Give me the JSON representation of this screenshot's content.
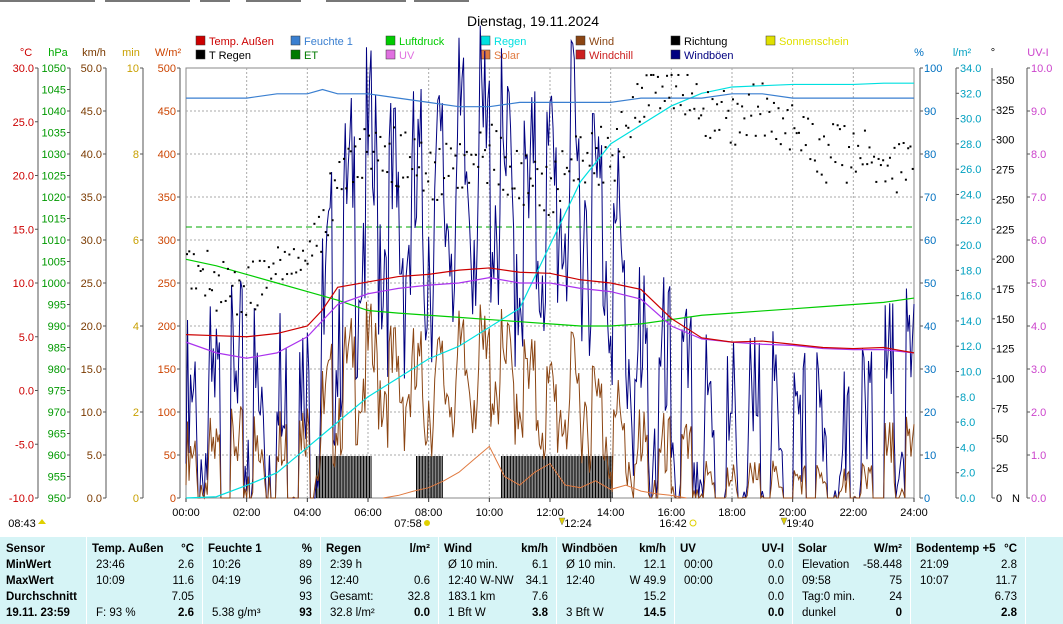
{
  "chart_data": {
    "type": "line",
    "title": "Dienstag, 19.11.2024",
    "xlabel": "",
    "x_ticks": [
      "00:00",
      "02:00",
      "04:00",
      "06:00",
      "08:00",
      "10:00",
      "12:00",
      "14:00",
      "16:00",
      "18:00",
      "20:00",
      "22:00",
      "24:00"
    ],
    "axis_units": {
      "temp": "°C",
      "pressure": "hPa",
      "wind": "km/h",
      "sunshine": "min",
      "solar": "W/m²",
      "humidity": "%",
      "rain": "l/m²",
      "direction": "°",
      "uv": "UV-I"
    },
    "axes": {
      "temp": {
        "min": -10,
        "max": 30,
        "ticks": [
          "30.0",
          "25.0",
          "20.0",
          "15.0",
          "10.0",
          "5.0",
          "0.0",
          "-5.0",
          "-10.0"
        ],
        "color": "#cc0000"
      },
      "pressure": {
        "min": 950,
        "max": 1050,
        "ticks": [
          "1050",
          "1045",
          "1040",
          "1035",
          "1030",
          "1025",
          "1020",
          "1015",
          "1010",
          "1005",
          "1000",
          "995",
          "990",
          "985",
          "980",
          "975",
          "970",
          "965",
          "960",
          "955",
          "950"
        ],
        "color": "#00aa00"
      },
      "wind": {
        "min": 0,
        "max": 50,
        "ticks": [
          "50.0",
          "45.0",
          "40.0",
          "35.0",
          "30.0",
          "25.0",
          "20.0",
          "15.0",
          "10.0",
          "5.0",
          "0.0"
        ],
        "color": "#7a3a00"
      },
      "sunshine": {
        "min": 0,
        "max": 10,
        "ticks": [
          "10",
          "8",
          "6",
          "4",
          "2",
          "0"
        ],
        "color": "#c8a000"
      },
      "solar": {
        "min": 0,
        "max": 500,
        "ticks": [
          "500",
          "450",
          "400",
          "350",
          "300",
          "250",
          "200",
          "150",
          "100",
          "50",
          "0"
        ],
        "color": "#cc4400"
      },
      "humidity": {
        "min": 0,
        "max": 100,
        "ticks": [
          "100",
          "90",
          "80",
          "70",
          "60",
          "50",
          "40",
          "30",
          "20",
          "10",
          "0"
        ],
        "color": "#0070c0"
      },
      "rain": {
        "min": 0,
        "max": 34,
        "ticks": [
          "34.0",
          "32.0",
          "30.0",
          "28.0",
          "26.0",
          "24.0",
          "22.0",
          "20.0",
          "18.0",
          "16.0",
          "14.0",
          "12.0",
          "10.0",
          "8.0",
          "6.0",
          "4.0",
          "2.0",
          "0.0"
        ],
        "color": "#00a0c0"
      },
      "direction": {
        "min": 0,
        "max": 360,
        "ticks": [
          "350",
          "325",
          "300",
          "275",
          "250",
          "225",
          "200",
          "175",
          "150",
          "125",
          "100",
          "75",
          "50",
          "25",
          "0"
        ],
        "zero_label": "N",
        "color": "#000000"
      },
      "uv": {
        "min": 0,
        "max": 10,
        "ticks": [
          "10.0",
          "9.0",
          "8.0",
          "7.0",
          "6.0",
          "5.0",
          "4.0",
          "3.0",
          "2.0",
          "1.0",
          "0.0"
        ],
        "color": "#cc44cc"
      }
    },
    "legend": [
      {
        "name": "Temp. Außen",
        "color": "#cc0000"
      },
      {
        "name": "Feuchte 1",
        "color": "#3a7fd0"
      },
      {
        "name": "Luftdruck",
        "color": "#00cc00"
      },
      {
        "name": "Regen",
        "color": "#00e0e0"
      },
      {
        "name": "Wind",
        "color": "#8b4513"
      },
      {
        "name": "Richtung",
        "color": "#000000"
      },
      {
        "name": "Sonnenschein",
        "color": "#e0e000"
      },
      {
        "name": "T Regen",
        "color": "#000000"
      },
      {
        "name": "ET",
        "color": "#007a00"
      },
      {
        "name": "UV",
        "color": "#e070e0"
      },
      {
        "name": "Solar",
        "color": "#e07a40"
      },
      {
        "name": "Windchill",
        "color": "#cc2020"
      },
      {
        "name": "Windböen",
        "color": "#000080"
      }
    ],
    "series": [
      {
        "name": "Temp. Außen",
        "axis": "temp",
        "x": [
          0,
          1,
          2,
          3,
          4,
          4.5,
          5,
          6,
          7,
          8,
          9,
          10,
          11,
          12,
          13,
          14,
          15,
          16,
          17,
          18,
          19,
          20,
          21,
          22,
          23,
          24
        ],
        "values": [
          5.2,
          5.1,
          5.0,
          5.3,
          6.0,
          7.5,
          9.6,
          10.1,
          10.6,
          10.8,
          11.2,
          11.4,
          11.0,
          10.9,
          10.3,
          10.0,
          9.4,
          6.7,
          4.9,
          4.5,
          4.6,
          4.3,
          4.0,
          3.9,
          4.0,
          3.5
        ]
      },
      {
        "name": "Feuchte 1",
        "axis": "humidity",
        "x": [
          0,
          1,
          2,
          3,
          4,
          4.5,
          5,
          6,
          7,
          8,
          9,
          10,
          11,
          12,
          13,
          14,
          15,
          16,
          17,
          18,
          19,
          20,
          21,
          22,
          23,
          24
        ],
        "values": [
          93,
          93,
          93,
          94,
          94,
          95,
          94,
          94,
          93,
          92,
          91,
          91,
          92,
          92,
          92,
          92,
          93,
          93,
          93,
          94,
          94,
          93,
          93,
          93,
          93,
          93
        ]
      },
      {
        "name": "Luftdruck",
        "axis": "pressure",
        "x": [
          0,
          1,
          2,
          3,
          4,
          5,
          6,
          7,
          8,
          9,
          10,
          11,
          12,
          13,
          14,
          15,
          16,
          17,
          18,
          19,
          20,
          21,
          22,
          23,
          24
        ],
        "values": [
          1005.5,
          1004.0,
          1002.0,
          1000.0,
          998.0,
          996.0,
          993.6,
          993.0,
          992.5,
          992.0,
          991.5,
          991.0,
          990.5,
          990.0,
          990.0,
          990.5,
          991.5,
          992.5,
          993.0,
          993.5,
          994.0,
          994.5,
          995.0,
          995.5,
          996.5
        ]
      },
      {
        "name": "Regen",
        "axis": "rain",
        "x": [
          0,
          1,
          2,
          3,
          4,
          5,
          6,
          7,
          8,
          9,
          10,
          11,
          12,
          13,
          14,
          15,
          16,
          17,
          18,
          19,
          20,
          21,
          22,
          23,
          24
        ],
        "values": [
          0.0,
          0.1,
          1.0,
          2.0,
          4.0,
          6.0,
          8.0,
          9.5,
          11.0,
          12.0,
          13.5,
          15.0,
          20.0,
          25.0,
          28.0,
          29.5,
          31.0,
          32.0,
          32.5,
          32.6,
          32.7,
          32.7,
          32.7,
          32.8,
          32.8
        ]
      },
      {
        "name": "Solar",
        "axis": "solar",
        "x": [
          6.5,
          7,
          7.5,
          8,
          8.5,
          9,
          9.5,
          10,
          10.5,
          11,
          11.5,
          12,
          12.5,
          13,
          13.5,
          14,
          14.5,
          15,
          15.5,
          16,
          16.5
        ],
        "values": [
          0,
          3,
          8,
          12,
          20,
          30,
          45,
          60,
          25,
          15,
          30,
          40,
          15,
          12,
          20,
          10,
          15,
          8,
          5,
          3,
          0
        ]
      },
      {
        "name": "Wind",
        "axis": "wind",
        "x": [
          0,
          1,
          2,
          3,
          4,
          5,
          6,
          7,
          8,
          9,
          10,
          11,
          12,
          13,
          14,
          15,
          16,
          17,
          18,
          19,
          20,
          21,
          22,
          23,
          24
        ],
        "values": [
          1.5,
          2.0,
          3.0,
          3.5,
          4.5,
          12.0,
          15.0,
          13.0,
          12.0,
          14.0,
          15.0,
          13.0,
          10.0,
          12.0,
          8.0,
          3.0,
          2.0,
          1.0,
          0.5,
          0.5,
          0.3,
          0.3,
          0.5,
          1.0,
          3.0
        ]
      },
      {
        "name": "Windböen",
        "axis": "wind",
        "x": [
          0,
          1,
          2,
          3,
          4,
          5,
          6,
          7,
          8,
          9,
          10,
          11,
          12,
          13,
          14,
          15,
          16,
          17,
          18,
          19,
          20,
          21,
          22,
          23,
          24
        ],
        "values": [
          4.0,
          6.0,
          8.0,
          7.0,
          6.0,
          25.0,
          35.0,
          30.0,
          32.0,
          36.0,
          38.0,
          30.0,
          34.0,
          36.0,
          30.0,
          10.0,
          8.0,
          4.0,
          3.0,
          2.0,
          1.5,
          1.0,
          1.5,
          5.0,
          10.0
        ]
      },
      {
        "name": "Windchill",
        "axis": "temp",
        "x": [
          0,
          1,
          2,
          3,
          4,
          5,
          6,
          7,
          8,
          9,
          10,
          11,
          12,
          13,
          14,
          15,
          16,
          17,
          18,
          19,
          20,
          21,
          22,
          23,
          24
        ],
        "values": [
          4.5,
          3.5,
          3.0,
          3.5,
          5.0,
          8.0,
          9.0,
          9.5,
          9.8,
          10.0,
          10.5,
          10.0,
          10.0,
          9.5,
          9.2,
          8.5,
          6.0,
          4.8,
          4.5,
          4.3,
          4.2,
          3.9,
          3.8,
          3.8,
          3.5
        ]
      },
      {
        "name": "Richtung",
        "axis": "direction",
        "type": "scatter",
        "x": [
          0,
          1,
          2,
          3,
          4,
          5,
          6,
          7,
          8,
          9,
          10,
          11,
          12,
          13,
          14,
          15,
          16,
          17,
          18,
          19,
          20,
          21,
          22,
          23,
          24
        ],
        "values": [
          205,
          175,
          170,
          195,
          200,
          270,
          300,
          285,
          270,
          285,
          290,
          270,
          260,
          290,
          285,
          340,
          345,
          325,
          320,
          325,
          310,
          290,
          288,
          282,
          280
        ]
      }
    ],
    "sunshine_marks": {
      "x": [
        4.3,
        4.6,
        6.0,
        8.0
      ],
      "ranges": [
        [
          4.3,
          6.1
        ],
        [
          7.6,
          8.5
        ],
        [
          10.4,
          14.1
        ]
      ]
    },
    "time_markers": {
      "sunrise": "07:58",
      "noon": "12:24",
      "sunset": "16:42",
      "moon": "08:43",
      "moon2": "19:40"
    }
  },
  "stats": {
    "headers": {
      "sensor": "Sensor",
      "temp": "Temp. Außen",
      "temp_unit": "°C",
      "hum": "Feuchte 1",
      "hum_unit": "%",
      "rain": "Regen",
      "rain_unit": "l/m²",
      "wind": "Wind",
      "wind_unit": "km/h",
      "gust": "Windböen",
      "gust_unit": "km/h",
      "uv": "UV",
      "uv_unit": "UV-I",
      "solar": "Solar",
      "solar_unit": "W/m²",
      "soil": "Bodentemp +5",
      "soil_unit": "°C"
    },
    "rows": [
      {
        "label": "MinWert",
        "temp_t": "23:46",
        "temp_v": "2.6",
        "hum_t": "10:26",
        "hum_v": "89",
        "rain_t": "2:39 h",
        "rain_v": "",
        "wind_t": "Ø 10 min.",
        "wind_v": "6.1",
        "gust_t": "Ø 10 min.",
        "gust_v": "12.1",
        "uv_t": "00:00",
        "uv_v": "0.0",
        "solar_t": "Elevation",
        "solar_v": "-58.448",
        "soil_t": "21:09",
        "soil_v": "2.8"
      },
      {
        "label": "MaxWert",
        "temp_t": "10:09",
        "temp_v": "11.6",
        "hum_t": "04:19",
        "hum_v": "96",
        "rain_t": "12:40",
        "rain_v": "0.6",
        "wind_t": "12:40   W-NW",
        "wind_v": "34.1",
        "gust_t": "12:40",
        "gust_v": "W 49.9",
        "uv_t": "00:00",
        "uv_v": "0.0",
        "solar_t": "09:58",
        "solar_v": "75",
        "soil_t": "10:07",
        "soil_v": "11.7"
      },
      {
        "label": "Durchschnitt",
        "temp_t": "",
        "temp_v": "7.05",
        "hum_t": "",
        "hum_v": "93",
        "rain_t": "Gesamt:",
        "rain_v": "32.8",
        "wind_t": "183.1 km",
        "wind_v": "7.6",
        "gust_t": "",
        "gust_v": "15.2",
        "uv_t": "",
        "uv_v": "0.0",
        "solar_t": "Tag:0 min.",
        "solar_v": "24",
        "soil_t": "",
        "soil_v": "6.73"
      },
      {
        "label": "19.11.  23:59",
        "temp_t": "F: 93 %",
        "temp_v": "2.6",
        "hum_t": "5.38 g/m³",
        "hum_v": "93",
        "rain_t": "32.8 l/m²",
        "rain_v": "0.0",
        "wind_t": "1 Bft W",
        "wind_v": "3.8",
        "gust_t": "3 Bft W",
        "gust_v": "14.5",
        "uv_t": "",
        "uv_v": "0.0",
        "solar_t": "dunkel",
        "solar_v": "0",
        "soil_t": "",
        "soil_v": "2.8"
      }
    ]
  }
}
